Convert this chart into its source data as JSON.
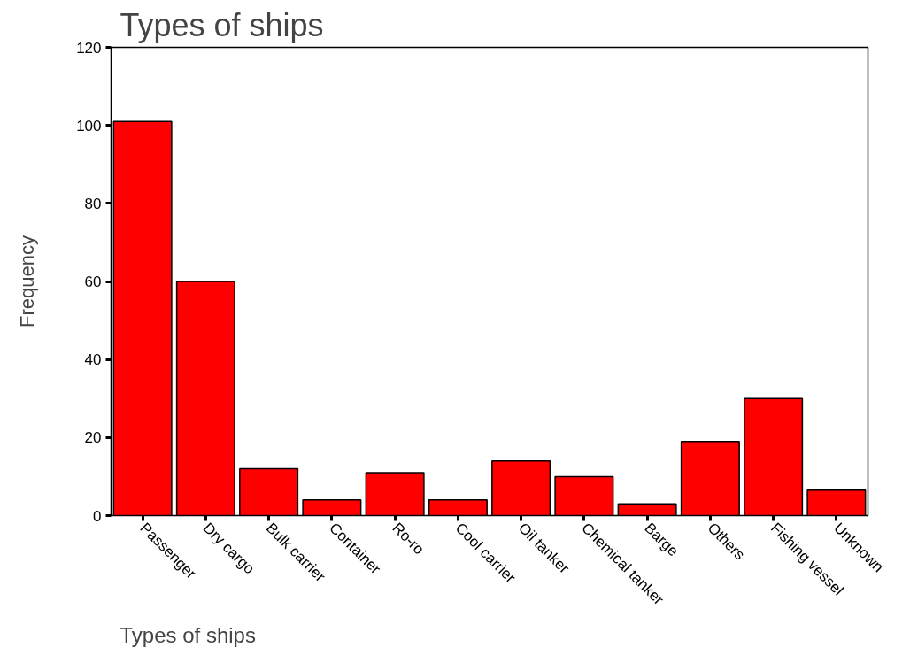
{
  "chart_data": {
    "type": "bar",
    "title": "Types of ships",
    "xlabel": "Types of ships",
    "ylabel": "Frequency",
    "categories": [
      "Passenger",
      "Dry cargo",
      "Bulk carrier",
      "Container",
      "Ro-ro",
      "Cool carrier",
      "Oil tanker",
      "Chemical tanker",
      "Barge",
      "Others",
      "Fishing vessel",
      "Unknown"
    ],
    "values": [
      101,
      60,
      12,
      4,
      11,
      4,
      14,
      10,
      3,
      19,
      30,
      6.5
    ],
    "color": "#ff0000",
    "ylim": [
      0,
      120
    ],
    "yticks": [
      0,
      20,
      40,
      60,
      80,
      100,
      120
    ],
    "grid": false
  }
}
